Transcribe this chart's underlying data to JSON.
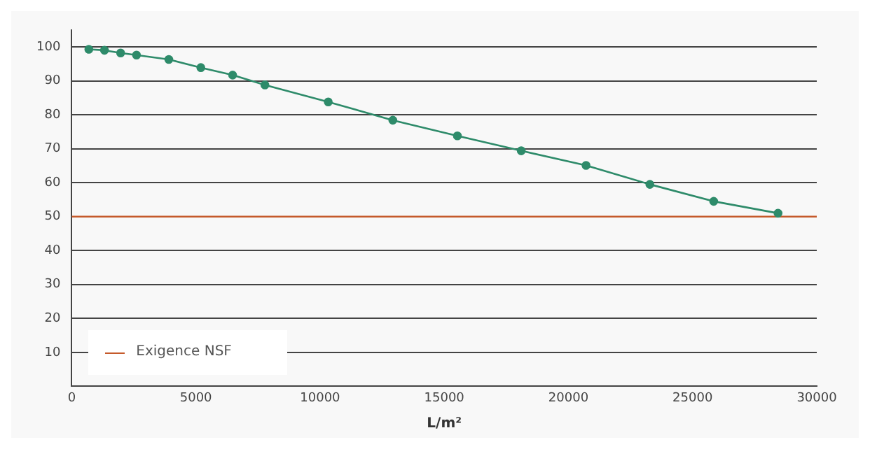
{
  "chart_data": {
    "type": "line",
    "xlabel": "L/m²",
    "xlim": [
      0,
      30000
    ],
    "xticks": [
      0,
      5000,
      10000,
      15000,
      20000,
      25000,
      30000
    ],
    "ylim": [
      0,
      105
    ],
    "yticks": [
      10,
      20,
      30,
      40,
      50,
      60,
      70,
      80,
      90,
      100
    ],
    "grid": "y",
    "legend": "bottom left",
    "marker": "circle",
    "line_style": "solid",
    "series": [
      {
        "color": "#2e8b6a",
        "x": [
          690,
          1320,
          1970,
          2610,
          3910,
          5200,
          6480,
          7780,
          10330,
          12930,
          15530,
          18100,
          20710,
          23280,
          25850,
          28440
        ],
        "values": [
          99.3,
          99.0,
          98.2,
          97.6,
          96.3,
          93.9,
          91.7,
          88.8,
          83.8,
          78.4,
          73.8,
          69.4,
          65.1,
          59.5,
          54.5,
          51.0
        ]
      },
      {
        "name": "Exigence NSF",
        "color": "#c55a2b",
        "type": "line",
        "marker": "none",
        "x": [
          0,
          30000
        ],
        "values": [
          50,
          50
        ]
      }
    ]
  }
}
